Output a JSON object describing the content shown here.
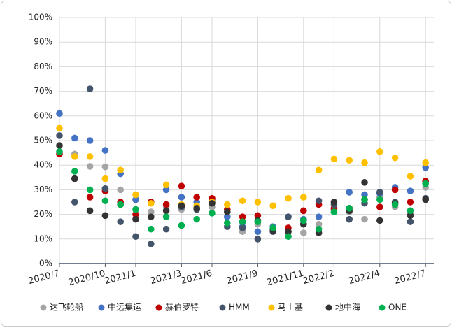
{
  "chart_data": {
    "type": "scatter",
    "categories": [
      "2020/7",
      null,
      null,
      "2020/10",
      null,
      "2021/1",
      null,
      null,
      "2021/3",
      null,
      "2021/6",
      null,
      null,
      "2021/9",
      null,
      null,
      "2021/11",
      null,
      "2022/2",
      null,
      null,
      "2022/4",
      null,
      null,
      "2022/7"
    ],
    "ylim": [
      0,
      100
    ],
    "yticks": [
      {
        "value": 0,
        "label": "0%"
      },
      {
        "value": 10,
        "label": "10%"
      },
      {
        "value": 20,
        "label": "20%"
      },
      {
        "value": 30,
        "label": "30%"
      },
      {
        "value": 40,
        "label": "40%"
      },
      {
        "value": 50,
        "label": "50%"
      },
      {
        "value": 60,
        "label": "60%"
      },
      {
        "value": 70,
        "label": "70%"
      },
      {
        "value": 80,
        "label": "80%"
      },
      {
        "value": 90,
        "label": "90%"
      },
      {
        "value": 100,
        "label": "100%"
      }
    ],
    "grid": true,
    "legend": "bottom",
    "series": [
      {
        "name": "达飞轮船",
        "color": "#a5a5a5",
        "values": [
          45,
          44.5,
          39.5,
          39.3,
          30,
          26,
          21,
          23,
          22,
          22,
          23,
          19,
          13,
          16,
          14,
          13,
          12.5,
          16,
          21,
          21,
          18,
          27,
          23,
          20,
          31
        ]
      },
      {
        "name": "中远集运",
        "color": "#4472c4",
        "values": [
          61,
          51,
          50,
          46,
          36.5,
          26,
          25,
          30,
          27,
          25,
          26,
          19,
          15,
          13,
          15,
          19,
          18,
          19,
          22,
          29,
          28,
          28.5,
          31,
          29.5,
          39
        ]
      },
      {
        "name": "赫伯罗特",
        "color": "#c00000",
        "values": [
          44.5,
          34.5,
          27,
          29.5,
          25,
          20,
          25,
          24,
          31.5,
          27,
          26.5,
          22,
          19,
          19.5,
          14,
          14.5,
          21.5,
          24,
          22.5,
          22.5,
          26,
          23,
          30,
          25,
          33.5
        ]
      },
      {
        "name": "HMM",
        "color": "#44546a",
        "values": [
          52,
          25,
          71,
          30.5,
          17,
          11,
          8,
          14,
          23,
          22,
          25,
          15,
          14.5,
          10,
          13,
          19,
          16,
          25.5,
          24,
          18,
          24.5,
          29,
          25,
          17,
          26.5
        ]
      },
      {
        "name": "马士基",
        "color": "#ffc000",
        "values": [
          55,
          43.5,
          43.5,
          34.5,
          38,
          28,
          24.5,
          32,
          24,
          23.5,
          25,
          24,
          25.5,
          25,
          23.5,
          26.5,
          27,
          38,
          42.5,
          42,
          41,
          45.5,
          43,
          35.5,
          41
        ]
      },
      {
        "name": "地中海",
        "color": "#333333",
        "values": [
          48,
          34.5,
          21.5,
          19.5,
          24,
          18,
          19,
          21.5,
          23.5,
          22.5,
          24.5,
          21,
          17,
          17.5,
          13.5,
          13,
          16,
          12.5,
          25,
          21.5,
          33,
          17.5,
          24.5,
          19.5,
          26
        ]
      },
      {
        "name": "ONE",
        "color": "#00b050",
        "values": [
          45.5,
          37.5,
          30,
          25.5,
          24,
          22,
          14,
          19,
          15.5,
          18,
          20.5,
          16.5,
          17,
          17,
          14.5,
          11,
          17.5,
          14,
          21,
          22.5,
          26,
          26,
          24,
          21.5,
          32.5
        ]
      }
    ]
  }
}
